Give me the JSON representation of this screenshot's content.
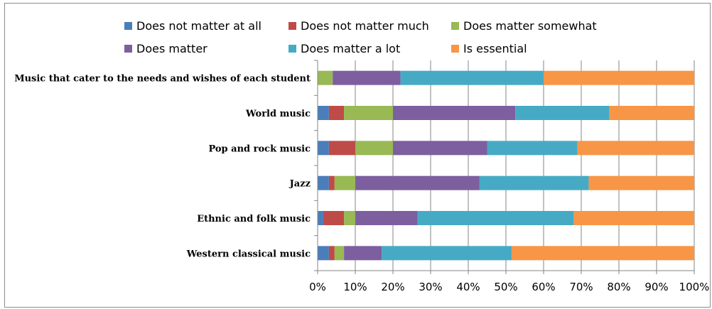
{
  "chart_data": {
    "type": "bar",
    "orientation": "horizontal",
    "stacked": "percent",
    "categories": [
      "Music that cater to the needs and wishes of each student",
      "World music",
      "Pop and rock music",
      "Jazz",
      "Ethnic and folk music",
      "Western classical music"
    ],
    "series": [
      {
        "name": "Does not matter at all",
        "color": "#4a7ebb",
        "values": [
          0,
          3,
          3,
          3,
          1.5,
          3
        ]
      },
      {
        "name": "Does not matter much",
        "color": "#be4b48",
        "values": [
          0,
          4,
          7,
          1.5,
          5.5,
          1.5
        ]
      },
      {
        "name": "Does matter somewhat",
        "color": "#98b954",
        "values": [
          4,
          13,
          10,
          5.5,
          3,
          2.5
        ]
      },
      {
        "name": "Does matter",
        "color": "#7d5fa0",
        "values": [
          18,
          32.5,
          25,
          33,
          16.5,
          10
        ]
      },
      {
        "name": "Does matter a lot",
        "color": "#46aac5",
        "values": [
          38,
          25,
          24,
          29,
          41.5,
          34.5
        ]
      },
      {
        "name": "Is essential",
        "color": "#f79646",
        "values": [
          40,
          22.5,
          31,
          28,
          32,
          48.5
        ]
      }
    ],
    "xlim": [
      0,
      100
    ],
    "x_ticks": [
      "0%",
      "10%",
      "20%",
      "30%",
      "40%",
      "50%",
      "60%",
      "70%",
      "80%",
      "90%",
      "100%"
    ],
    "legend_position": "top",
    "grid": "vertical"
  }
}
